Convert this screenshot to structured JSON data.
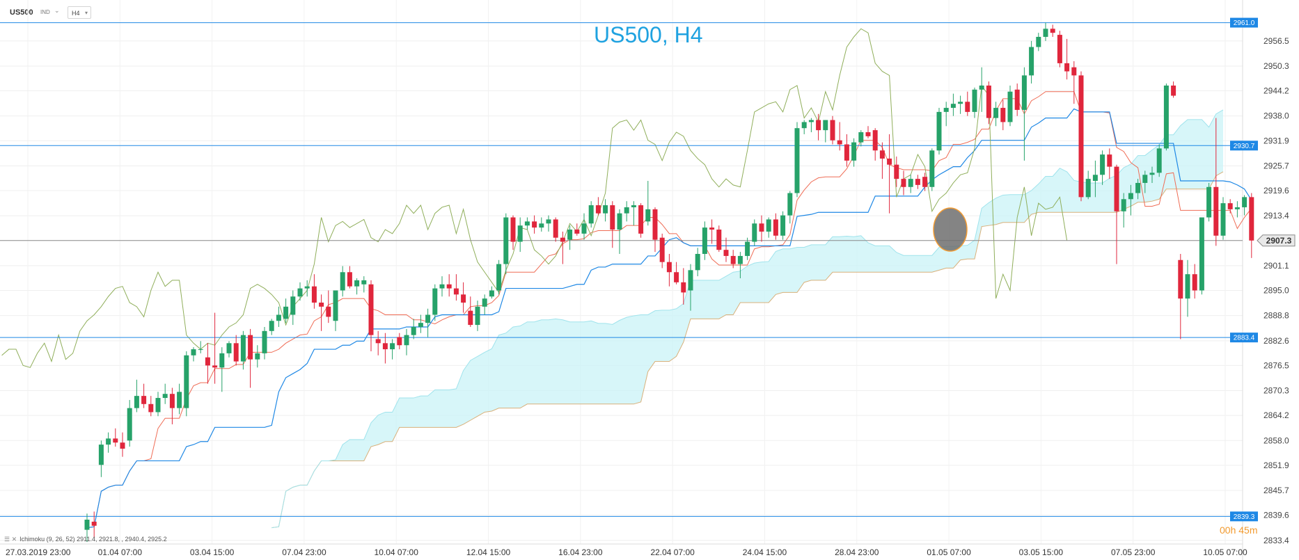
{
  "toolbar": {
    "symbol": "US500",
    "indicators_label": "IND",
    "timeframe": "H4"
  },
  "chart_data": {
    "type": "candlestick",
    "title": "US500, H4",
    "y_ticks": [
      2956.5,
      2950.3,
      2944.2,
      2938.0,
      2931.9,
      2925.7,
      2919.6,
      2913.4,
      2907.3,
      2901.1,
      2895.0,
      2888.8,
      2882.6,
      2876.5,
      2870.3,
      2864.2,
      2858.0,
      2851.9,
      2845.7,
      2839.6,
      2833.4
    ],
    "ylim": [
      2832.5,
      2963.5
    ],
    "x_ticks": [
      "27.03.2019  23:00",
      "01.04  07:00",
      "03.04  15:00",
      "07.04  23:00",
      "10.04  07:00",
      "12.04  15:00",
      "16.04  23:00",
      "22.04  07:00",
      "24.04  15:00",
      "28.04  23:00",
      "01.05  07:00",
      "03.05  15:00",
      "07.05  23:00",
      "10.05  07:00"
    ],
    "horizontal_levels": [
      {
        "value": 2961.0,
        "label": "2961.0",
        "color": "#1e88e5"
      },
      {
        "value": 2930.7,
        "label": "2930.7",
        "color": "#1e88e5"
      },
      {
        "value": 2883.4,
        "label": "2883.4",
        "color": "#1e88e5"
      },
      {
        "value": 2839.3,
        "label": "2839.3",
        "color": "#1e88e5"
      }
    ],
    "current_price": {
      "value": 2907.3,
      "label": "2907.3",
      "color": "#666666"
    },
    "candles": [
      [
        2836.0,
        2840.0,
        2833.0,
        2838.5
      ],
      [
        2838.0,
        2840.5,
        2834.0,
        2837.0
      ],
      [
        2852.0,
        2858.0,
        2849.0,
        2857.0
      ],
      [
        2857.0,
        2860.0,
        2855.0,
        2858.5
      ],
      [
        2858.5,
        2861.0,
        2856.5,
        2857.5
      ],
      [
        2857.5,
        2860.0,
        2854.0,
        2856.0
      ],
      [
        2858.0,
        2868.0,
        2856.5,
        2866.0
      ],
      [
        2866.0,
        2873.0,
        2865.0,
        2869.0
      ],
      [
        2869.0,
        2872.0,
        2866.0,
        2867.0
      ],
      [
        2867.0,
        2869.0,
        2864.0,
        2865.0
      ],
      [
        2865.0,
        2870.0,
        2864.0,
        2868.5
      ],
      [
        2868.5,
        2872.0,
        2867.0,
        2869.5
      ],
      [
        2869.5,
        2871.0,
        2862.0,
        2866.0
      ],
      [
        2866.0,
        2872.0,
        2864.5,
        2870.0
      ],
      [
        2866.0,
        2880.0,
        2864.0,
        2879.0
      ],
      [
        2879.0,
        2881.0,
        2877.5,
        2880.5
      ],
      [
        2880.5,
        2882.5,
        2879.5,
        2880.5
      ],
      [
        2878.5,
        2882.0,
        2872.0,
        2876.5
      ],
      [
        2876.5,
        2889.5,
        2872.0,
        2876.0
      ],
      [
        2876.0,
        2881.0,
        2870.0,
        2879.5
      ],
      [
        2879.5,
        2882.5,
        2878.5,
        2882.0
      ],
      [
        2882.0,
        2884.0,
        2876.5,
        2877.5
      ],
      [
        2877.5,
        2885.0,
        2875.5,
        2884.0
      ],
      [
        2884.0,
        2885.5,
        2871.0,
        2878.0
      ],
      [
        2878.0,
        2881.5,
        2876.0,
        2879.5
      ],
      [
        2879.5,
        2886.0,
        2878.0,
        2885.0
      ],
      [
        2885.0,
        2888.0,
        2884.0,
        2887.5
      ],
      [
        2887.5,
        2891.0,
        2886.0,
        2889.0
      ],
      [
        2888.0,
        2893.0,
        2887.0,
        2891.0
      ],
      [
        2889.0,
        2895.0,
        2886.5,
        2893.5
      ],
      [
        2893.5,
        2897.0,
        2892.5,
        2895.5
      ],
      [
        2895.5,
        2897.5,
        2893.5,
        2896.0
      ],
      [
        2896.0,
        2899.0,
        2890.5,
        2892.0
      ],
      [
        2892.0,
        2894.0,
        2885.0,
        2891.0
      ],
      [
        2891.0,
        2895.0,
        2887.0,
        2888.5
      ],
      [
        2887.5,
        2895.0,
        2885.0,
        2895.0
      ],
      [
        2895.0,
        2901.0,
        2893.5,
        2899.5
      ],
      [
        2899.5,
        2901.0,
        2895.5,
        2896.0
      ],
      [
        2896.0,
        2898.0,
        2894.0,
        2897.5
      ],
      [
        2896.5,
        2898.5,
        2894.5,
        2897.5
      ],
      [
        2896.5,
        2897.5,
        2880.0,
        2884.0
      ],
      [
        2883.0,
        2885.0,
        2879.0,
        2882.0
      ],
      [
        2882.0,
        2884.5,
        2877.0,
        2880.5
      ],
      [
        2880.5,
        2883.0,
        2878.0,
        2882.0
      ],
      [
        2883.5,
        2884.5,
        2880.5,
        2881.5
      ],
      [
        2881.5,
        2885.5,
        2879.0,
        2884.0
      ],
      [
        2884.0,
        2888.0,
        2883.0,
        2886.0
      ],
      [
        2886.0,
        2889.0,
        2884.5,
        2887.0
      ],
      [
        2887.0,
        2890.5,
        2883.5,
        2889.0
      ],
      [
        2889.0,
        2896.5,
        2887.5,
        2895.5
      ],
      [
        2895.5,
        2898.5,
        2893.5,
        2896.5
      ],
      [
        2896.5,
        2899.0,
        2893.5,
        2895.5
      ],
      [
        2895.5,
        2899.0,
        2892.5,
        2894.0
      ],
      [
        2894.0,
        2897.0,
        2889.5,
        2892.0
      ],
      [
        2890.0,
        2893.5,
        2886.0,
        2886.5
      ],
      [
        2886.5,
        2892.5,
        2885.0,
        2891.0
      ],
      [
        2891.0,
        2894.0,
        2889.0,
        2893.0
      ],
      [
        2893.5,
        2896.0,
        2893.0,
        2895.0
      ],
      [
        2895.0,
        2902.5,
        2894.0,
        2901.5
      ],
      [
        2901.5,
        2914.0,
        2899.0,
        2913.0
      ],
      [
        2913.0,
        2913.5,
        2905.0,
        2907.0
      ],
      [
        2907.0,
        2913.0,
        2904.5,
        2911.0
      ],
      [
        2911.0,
        2913.0,
        2910.0,
        2912.0
      ],
      [
        2912.0,
        2913.5,
        2909.0,
        2910.5
      ],
      [
        2910.5,
        2913.0,
        2909.5,
        2911.5
      ],
      [
        2911.5,
        2913.5,
        2909.5,
        2912.5
      ],
      [
        2912.5,
        2913.0,
        2907.0,
        2908.0
      ],
      [
        2908.0,
        2909.5,
        2901.5,
        2907.0
      ],
      [
        2907.5,
        2911.0,
        2905.0,
        2910.0
      ],
      [
        2910.0,
        2911.5,
        2908.5,
        2909.0
      ],
      [
        2909.0,
        2914.0,
        2907.5,
        2911.5
      ],
      [
        2911.5,
        2917.0,
        2910.5,
        2916.0
      ],
      [
        2916.0,
        2918.0,
        2913.5,
        2914.0
      ],
      [
        2914.0,
        2917.5,
        2912.0,
        2916.0
      ],
      [
        2916.0,
        2917.0,
        2905.5,
        2910.0
      ],
      [
        2910.0,
        2915.0,
        2904.0,
        2914.0
      ],
      [
        2914.0,
        2917.0,
        2912.0,
        2915.5
      ],
      [
        2915.5,
        2917.0,
        2911.0,
        2916.0
      ],
      [
        2916.0,
        2916.5,
        2908.0,
        2909.0
      ],
      [
        2912.0,
        2922.0,
        2911.0,
        2915.0
      ],
      [
        2915.0,
        2915.5,
        2904.5,
        2907.5
      ],
      [
        2908.0,
        2909.0,
        2900.5,
        2902.0
      ],
      [
        2902.0,
        2904.0,
        2896.0,
        2899.5
      ],
      [
        2899.5,
        2902.0,
        2896.5,
        2897.0
      ],
      [
        2897.0,
        2900.5,
        2891.5,
        2894.5
      ],
      [
        2895.0,
        2901.5,
        2890.0,
        2900.0
      ],
      [
        2900.0,
        2905.5,
        2898.5,
        2904.0
      ],
      [
        2904.0,
        2912.0,
        2902.5,
        2910.5
      ],
      [
        2910.5,
        2912.5,
        2906.5,
        2910.0
      ],
      [
        2910.0,
        2911.0,
        2904.5,
        2905.0
      ],
      [
        2905.0,
        2908.0,
        2902.0,
        2903.5
      ],
      [
        2903.5,
        2905.0,
        2900.5,
        2901.5
      ],
      [
        2901.5,
        2904.5,
        2898.0,
        2903.5
      ],
      [
        2903.5,
        2908.0,
        2902.5,
        2907.0
      ],
      [
        2907.0,
        2912.5,
        2906.0,
        2911.5
      ],
      [
        2911.5,
        2913.5,
        2907.0,
        2909.5
      ],
      [
        2909.5,
        2913.0,
        2908.0,
        2912.5
      ],
      [
        2912.5,
        2914.0,
        2907.5,
        2908.5
      ],
      [
        2908.5,
        2914.5,
        2907.5,
        2913.5
      ],
      [
        2913.5,
        2919.5,
        2911.5,
        2919.0
      ],
      [
        2919.0,
        2936.5,
        2918.0,
        2935.0
      ],
      [
        2935.0,
        2937.0,
        2933.5,
        2936.5
      ],
      [
        2936.5,
        2937.5,
        2934.0,
        2937.0
      ],
      [
        2937.0,
        2938.5,
        2932.0,
        2934.5
      ],
      [
        2934.5,
        2937.0,
        2931.5,
        2937.0
      ],
      [
        2937.0,
        2938.0,
        2931.0,
        2932.0
      ],
      [
        2932.0,
        2936.5,
        2929.5,
        2931.0
      ],
      [
        2931.0,
        2933.5,
        2925.5,
        2927.0
      ],
      [
        2927.0,
        2932.5,
        2925.5,
        2931.5
      ],
      [
        2931.5,
        2934.5,
        2930.5,
        2934.0
      ],
      [
        2934.0,
        2935.5,
        2932.5,
        2933.0
      ],
      [
        2934.5,
        2935.0,
        2927.0,
        2929.5
      ],
      [
        2929.5,
        2931.5,
        2922.5,
        2927.5
      ],
      [
        2927.5,
        2933.5,
        2914.0,
        2926.0
      ],
      [
        2926.0,
        2928.0,
        2920.5,
        2922.5
      ],
      [
        2922.5,
        2924.5,
        2918.5,
        2920.5
      ],
      [
        2920.5,
        2923.5,
        2919.0,
        2922.5
      ],
      [
        2922.5,
        2923.5,
        2920.0,
        2921.0
      ],
      [
        2923.0,
        2924.0,
        2919.5,
        2920.5
      ],
      [
        2920.5,
        2930.0,
        2919.5,
        2929.5
      ],
      [
        2929.5,
        2940.0,
        2928.5,
        2939.0
      ],
      [
        2939.0,
        2941.5,
        2935.5,
        2940.0
      ],
      [
        2940.0,
        2943.5,
        2938.0,
        2941.0
      ],
      [
        2941.0,
        2943.0,
        2938.5,
        2941.5
      ],
      [
        2941.5,
        2944.0,
        2938.0,
        2939.0
      ],
      [
        2939.0,
        2945.0,
        2937.5,
        2944.5
      ],
      [
        2944.5,
        2950.0,
        2939.0,
        2945.5
      ],
      [
        2945.5,
        2946.5,
        2936.0,
        2937.5
      ],
      [
        2937.5,
        2941.5,
        2935.5,
        2940.0
      ],
      [
        2940.0,
        2942.0,
        2934.5,
        2936.5
      ],
      [
        2936.5,
        2945.5,
        2935.5,
        2944.0
      ],
      [
        2944.5,
        2946.0,
        2938.0,
        2939.5
      ],
      [
        2939.5,
        2950.0,
        2927.0,
        2948.0
      ],
      [
        2948.0,
        2956.5,
        2946.0,
        2955.0
      ],
      [
        2955.0,
        2958.5,
        2954.0,
        2957.5
      ],
      [
        2957.5,
        2961.0,
        2956.5,
        2959.5
      ],
      [
        2959.5,
        2960.5,
        2957.5,
        2958.5
      ],
      [
        2958.0,
        2959.0,
        2950.0,
        2951.0
      ],
      [
        2951.0,
        2957.0,
        2947.0,
        2949.0
      ],
      [
        2950.0,
        2951.5,
        2941.0,
        2948.0
      ],
      [
        2948.0,
        2949.0,
        2917.0,
        2918.0
      ],
      [
        2918.0,
        2924.5,
        2917.5,
        2922.5
      ],
      [
        2922.0,
        2927.0,
        2918.0,
        2923.5
      ],
      [
        2923.5,
        2929.5,
        2921.0,
        2928.5
      ],
      [
        2928.5,
        2930.0,
        2922.5,
        2925.5
      ],
      [
        2925.5,
        2926.0,
        2901.5,
        2914.5
      ],
      [
        2914.5,
        2919.0,
        2910.5,
        2917.5
      ],
      [
        2917.5,
        2921.0,
        2913.5,
        2919.0
      ],
      [
        2919.0,
        2922.5,
        2917.5,
        2921.5
      ],
      [
        2921.5,
        2924.5,
        2919.0,
        2923.5
      ],
      [
        2923.5,
        2925.5,
        2921.5,
        2924.0
      ],
      [
        2924.0,
        2931.0,
        2923.0,
        2930.0
      ],
      [
        2930.0,
        2946.0,
        2929.5,
        2945.5
      ],
      [
        2945.5,
        2946.5,
        2942.5,
        2943.0
      ],
      [
        2902.5,
        2904.0,
        2883.0,
        2893.0
      ],
      [
        2893.0,
        2902.5,
        2888.5,
        2899.0
      ],
      [
        2899.0,
        2901.5,
        2893.0,
        2895.0
      ],
      [
        2895.0,
        2913.0,
        2894.0,
        2913.0
      ],
      [
        2913.0,
        2921.5,
        2912.0,
        2920.5
      ],
      [
        2920.5,
        2937.5,
        2906.0,
        2908.5
      ],
      [
        2908.5,
        2918.0,
        2907.5,
        2916.5
      ],
      [
        2916.5,
        2917.5,
        2914.0,
        2915.0
      ],
      [
        2915.0,
        2917.0,
        2913.0,
        2915.5
      ],
      [
        2915.5,
        2918.5,
        2913.5,
        2918.0
      ],
      [
        2918.0,
        2919.0,
        2903.0,
        2907.3
      ]
    ]
  }
}
